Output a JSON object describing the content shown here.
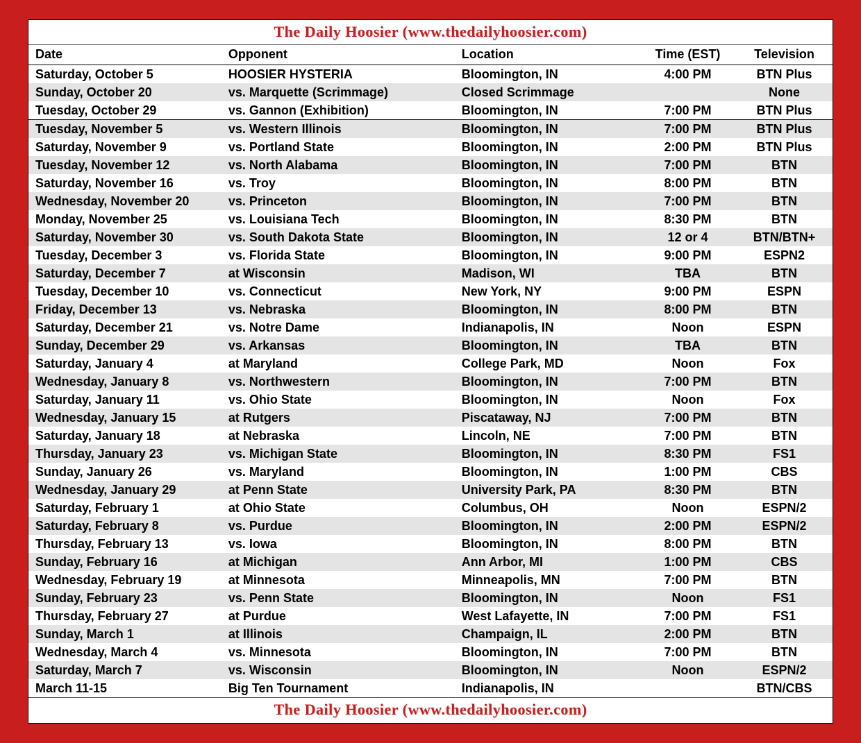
{
  "header_title": "The Daily Hoosier (www.thedailyhoosier.com)",
  "footer_title": "The Daily Hoosier (www.thedailyhoosier.com)",
  "columns": [
    "Date",
    "Opponent",
    "Location",
    "Time (EST)",
    "Television"
  ],
  "style": {
    "background_color": "#c81e1e",
    "frame_bg": "#ffffff",
    "title_color": "#c81e1e",
    "row_alt_bg": "#e4e4e4",
    "text_color": "#000000",
    "font_size_body": 18,
    "font_size_title": 22
  },
  "schedule": [
    {
      "date": "Saturday, October 5",
      "opponent": "HOOSIER HYSTERIA",
      "location": "Bloomington, IN",
      "time": "4:00 PM",
      "tv": "BTN Plus",
      "section": 0
    },
    {
      "date": "Sunday, October 20",
      "opponent": "vs. Marquette (Scrimmage)",
      "location": "Closed Scrimmage",
      "time": "",
      "tv": "None",
      "section": 0
    },
    {
      "date": "Tuesday, October 29",
      "opponent": "vs. Gannon (Exhibition)",
      "location": "Bloomington, IN",
      "time": "7:00 PM",
      "tv": "BTN Plus",
      "section": 0
    },
    {
      "date": "Tuesday, November 5",
      "opponent": "vs. Western Illinois",
      "location": "Bloomington, IN",
      "time": "7:00 PM",
      "tv": "BTN Plus",
      "section": 1
    },
    {
      "date": "Saturday, November 9",
      "opponent": "vs. Portland State",
      "location": "Bloomington, IN",
      "time": "2:00 PM",
      "tv": "BTN Plus",
      "section": 1
    },
    {
      "date": "Tuesday, November 12",
      "opponent": "vs. North Alabama",
      "location": "Bloomington, IN",
      "time": "7:00 PM",
      "tv": "BTN",
      "section": 1
    },
    {
      "date": "Saturday, November 16",
      "opponent": "vs. Troy",
      "location": "Bloomington, IN",
      "time": "8:00 PM",
      "tv": "BTN",
      "section": 1
    },
    {
      "date": "Wednesday, November 20",
      "opponent": "vs. Princeton",
      "location": "Bloomington, IN",
      "time": "7:00 PM",
      "tv": "BTN",
      "section": 1
    },
    {
      "date": "Monday, November 25",
      "opponent": "vs. Louisiana Tech",
      "location": "Bloomington, IN",
      "time": "8:30 PM",
      "tv": "BTN",
      "section": 1
    },
    {
      "date": "Saturday, November 30",
      "opponent": "vs. South Dakota State",
      "location": "Bloomington, IN",
      "time": "12 or 4",
      "tv": "BTN/BTN+",
      "section": 1
    },
    {
      "date": "Tuesday, December 3",
      "opponent": "vs. Florida State",
      "location": "Bloomington, IN",
      "time": "9:00 PM",
      "tv": "ESPN2",
      "section": 1
    },
    {
      "date": "Saturday, December 7",
      "opponent": "at Wisconsin",
      "location": "Madison, WI",
      "time": "TBA",
      "tv": "BTN",
      "section": 1
    },
    {
      "date": "Tuesday, December 10",
      "opponent": "vs. Connecticut",
      "location": "New York, NY",
      "time": "9:00 PM",
      "tv": "ESPN",
      "section": 1
    },
    {
      "date": "Friday, December 13",
      "opponent": "vs. Nebraska",
      "location": "Bloomington, IN",
      "time": "8:00 PM",
      "tv": "BTN",
      "section": 1
    },
    {
      "date": "Saturday, December 21",
      "opponent": "vs. Notre Dame",
      "location": "Indianapolis, IN",
      "time": "Noon",
      "tv": "ESPN",
      "section": 1
    },
    {
      "date": "Sunday, December 29",
      "opponent": "vs. Arkansas",
      "location": "Bloomington, IN",
      "time": "TBA",
      "tv": "BTN",
      "section": 1
    },
    {
      "date": "Saturday, January 4",
      "opponent": "at Maryland",
      "location": "College Park, MD",
      "time": "Noon",
      "tv": "Fox",
      "section": 1
    },
    {
      "date": "Wednesday, January 8",
      "opponent": "vs. Northwestern",
      "location": "Bloomington, IN",
      "time": "7:00 PM",
      "tv": "BTN",
      "section": 1
    },
    {
      "date": "Saturday, January 11",
      "opponent": "vs. Ohio State",
      "location": "Bloomington, IN",
      "time": "Noon",
      "tv": "Fox",
      "section": 1
    },
    {
      "date": "Wednesday, January 15",
      "opponent": "at Rutgers",
      "location": "Piscataway, NJ",
      "time": "7:00 PM",
      "tv": "BTN",
      "section": 1
    },
    {
      "date": "Saturday, January 18",
      "opponent": "at Nebraska",
      "location": "Lincoln, NE",
      "time": "7:00 PM",
      "tv": "BTN",
      "section": 1
    },
    {
      "date": "Thursday, January 23",
      "opponent": "vs. Michigan State",
      "location": "Bloomington, IN",
      "time": "8:30 PM",
      "tv": "FS1",
      "section": 1
    },
    {
      "date": "Sunday, January 26",
      "opponent": "vs. Maryland",
      "location": "Bloomington, IN",
      "time": "1:00 PM",
      "tv": "CBS",
      "section": 1
    },
    {
      "date": "Wednesday, January 29",
      "opponent": "at Penn State",
      "location": "University Park, PA",
      "time": "8:30 PM",
      "tv": "BTN",
      "section": 1
    },
    {
      "date": "Saturday, February 1",
      "opponent": "at Ohio State",
      "location": "Columbus, OH",
      "time": "Noon",
      "tv": "ESPN/2",
      "section": 1
    },
    {
      "date": "Saturday, February 8",
      "opponent": "vs. Purdue",
      "location": "Bloomington, IN",
      "time": "2:00 PM",
      "tv": "ESPN/2",
      "section": 1
    },
    {
      "date": "Thursday, February 13",
      "opponent": "vs. Iowa",
      "location": "Bloomington, IN",
      "time": "8:00 PM",
      "tv": "BTN",
      "section": 1
    },
    {
      "date": "Sunday, February 16",
      "opponent": "at Michigan",
      "location": "Ann Arbor, MI",
      "time": "1:00 PM",
      "tv": "CBS",
      "section": 1
    },
    {
      "date": "Wednesday, February 19",
      "opponent": "at Minnesota",
      "location": "Minneapolis, MN",
      "time": "7:00 PM",
      "tv": "BTN",
      "section": 1
    },
    {
      "date": "Sunday, February 23",
      "opponent": "vs. Penn State",
      "location": "Bloomington, IN",
      "time": "Noon",
      "tv": "FS1",
      "section": 1
    },
    {
      "date": "Thursday, February 27",
      "opponent": "at Purdue",
      "location": "West Lafayette, IN",
      "time": "7:00 PM",
      "tv": "FS1",
      "section": 1
    },
    {
      "date": "Sunday, March 1",
      "opponent": "at Illinois",
      "location": "Champaign, IL",
      "time": "2:00 PM",
      "tv": "BTN",
      "section": 1
    },
    {
      "date": "Wednesday, March 4",
      "opponent": "vs. Minnesota",
      "location": "Bloomington, IN",
      "time": "7:00 PM",
      "tv": "BTN",
      "section": 1
    },
    {
      "date": "Saturday, March 7",
      "opponent": "vs. Wisconsin",
      "location": "Bloomington, IN",
      "time": "Noon",
      "tv": "ESPN/2",
      "section": 1
    },
    {
      "date": "March 11-15",
      "opponent": "Big Ten Tournament",
      "location": "Indianapolis, IN",
      "time": "",
      "tv": "BTN/CBS",
      "section": 1
    }
  ]
}
